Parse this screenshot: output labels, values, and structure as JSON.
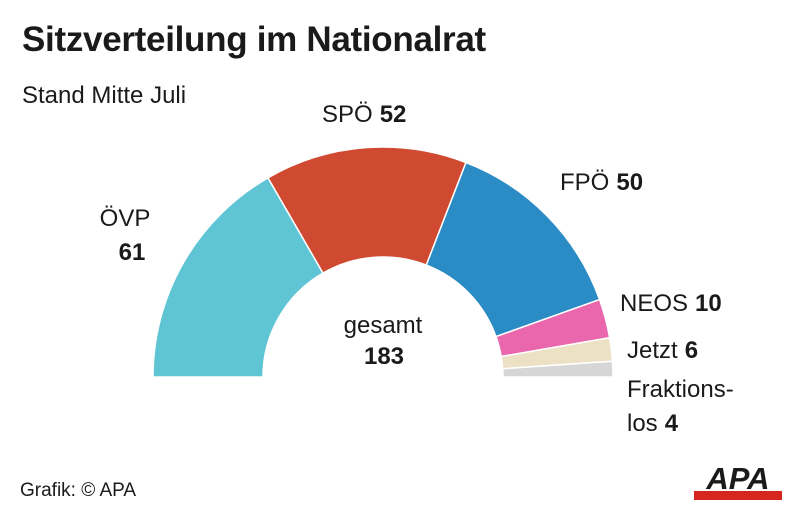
{
  "chart_data": {
    "type": "pie",
    "title": "Sitzverteilung im Nationalrat",
    "subtitle": "Stand Mitte Juli",
    "total_label": "gesamt",
    "total": 183,
    "segments": [
      {
        "name": "ÖVP",
        "value": 61,
        "color": "#5fc4d3"
      },
      {
        "name": "SPÖ",
        "value": 52,
        "color": "#cf4a30"
      },
      {
        "name": "FPÖ",
        "value": 50,
        "color": "#2a8bc5"
      },
      {
        "name": "NEOS",
        "value": 10,
        "color": "#ea67ae"
      },
      {
        "name": "Jetzt",
        "value": 6,
        "color": "#ece1c4"
      },
      {
        "name": "Fraktionslos",
        "value": 4,
        "color": "#d6d6d6"
      }
    ]
  },
  "labels": {
    "ovp": {
      "name": "ÖVP",
      "value": "61"
    },
    "spo": {
      "name": "SPÖ",
      "value": "52"
    },
    "fpo": {
      "name": "FPÖ",
      "value": "50"
    },
    "neos": {
      "name": "NEOS",
      "value": "10"
    },
    "jetzt": {
      "name": "Jetzt",
      "value": "6"
    },
    "fraktionslos": {
      "name_line1": "Fraktions-",
      "name_line2": "los",
      "value": "4"
    }
  },
  "center": {
    "label": "gesamt",
    "value": "183"
  },
  "footer": {
    "source": "Grafik: © APA"
  },
  "logo": {
    "text": "APA",
    "bar_color": "#d7261e"
  }
}
